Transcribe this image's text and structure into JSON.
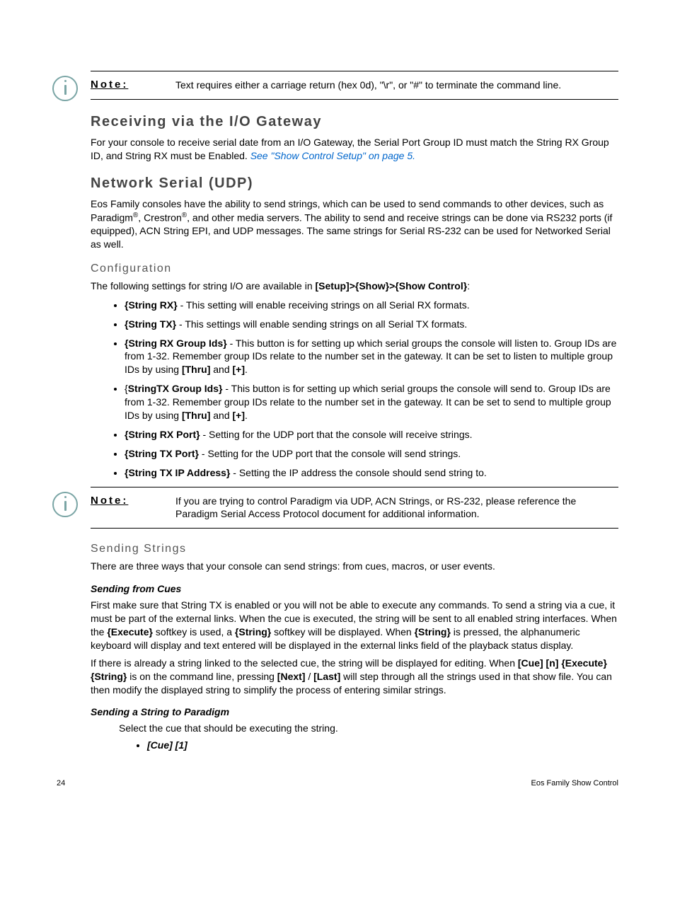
{
  "note1": {
    "label": "Note:",
    "text": "Text requires either a carriage return (hex 0d), \"\\r\", or \"#\" to terminate the command line."
  },
  "section_receiving": {
    "title": "Receiving via the I/O Gateway",
    "body": "For your console to receive serial date from an I/O Gateway, the Serial Port Group ID must match the String RX Group ID, and String RX must be Enabled.",
    "link": "See \"Show Control Setup\" on page 5."
  },
  "section_network": {
    "title": "Network Serial (UDP)",
    "intro_a": "Eos Family consoles have the ability to send strings, which can be used to send commands to other devices, such as Paradigm",
    "intro_b": ", Crestron",
    "intro_c": ", and other media servers. The ability to send and receive strings can be done via RS232 ports (if equipped), ACN String EPI, and UDP messages. The same strings for Serial RS-232 can be used for Networked Serial as well."
  },
  "configuration": {
    "title": "Configuration",
    "intro_a": "The following settings for string I/O are available in ",
    "intro_b": "[Setup]>{Show}>{Show Control}",
    "intro_c": ":",
    "items": [
      {
        "key": "{String RX}",
        "post": " - This setting will enable receiving strings on all Serial RX formats."
      },
      {
        "key": "{String TX}",
        "post": " - This settings will enable sending strings on all Serial TX formats."
      },
      {
        "key": "{String RX Group Ids}",
        "post": " - This button is for setting up which serial groups the console will listen to. Group IDs are from 1-32. Remember group IDs relate to the number set in the gateway. It can be set to listen to multiple group IDs by using ",
        "tail_a": "[Thru]",
        "tail_b": " and ",
        "tail_c": "[+]",
        "tail_d": "."
      },
      {
        "key_pre": "{",
        "key_mid": "StringTX Group Ids}",
        "post": " - This button is for setting up which serial groups the console will send to. Group IDs are from 1-32. Remember group IDs relate to the number set in the gateway. It can be set to send to multiple group IDs by using ",
        "tail_a": "[Thru]",
        "tail_b": " and ",
        "tail_c": "[+]",
        "tail_d": "."
      },
      {
        "key": "{String RX Port}",
        "post": " - Setting for the UDP port that the console will receive strings."
      },
      {
        "key": "{String TX Port}",
        "post": " - Setting for the UDP port that the console will send strings."
      },
      {
        "key": "{String TX IP Address}",
        "post": " - Setting the IP address the console should send string to."
      }
    ]
  },
  "note2": {
    "label": "Note:",
    "text": "If you are trying to control Paradigm via UDP, ACN Strings, or RS-232, please reference the Paradigm Serial Access Protocol document for additional information."
  },
  "sending": {
    "title": "Sending Strings",
    "intro": "There are three ways that your console can send strings: from cues, macros, or user events.",
    "cues_title": "Sending from Cues",
    "cues_p1_a": "First make sure that String TX is enabled or you will not be able to execute any commands. To send a string via a cue, it must be part of the external links. When the cue is executed, the string will be sent to all enabled string interfaces. When the ",
    "cues_p1_b": "{Execute}",
    "cues_p1_c": " softkey is used, a ",
    "cues_p1_d": "{String}",
    "cues_p1_e": " softkey will be displayed. When ",
    "cues_p1_f": "{String}",
    "cues_p1_g": " is pressed, the alphanumeric keyboard will display and text entered will be displayed in the external links field of the playback status display.",
    "cues_p2_a": "If there is already a string linked to the selected cue, the string will be displayed for editing. When ",
    "cues_p2_b": "[Cue] [n] {Execute} {String}",
    "cues_p2_c": " is on the command line, pressing ",
    "cues_p2_d": "[Next]",
    "cues_p2_e": " / ",
    "cues_p2_f": "[Last]",
    "cues_p2_g": " will step through all the strings used in that show file. You can then modify the displayed string to simplify the process of entering similar strings.",
    "paradigm_title": "Sending a String to Paradigm",
    "paradigm_intro": "Select the cue that should be executing the string.",
    "paradigm_item": "[Cue] [1]"
  },
  "footer": {
    "page": "24",
    "title": "Eos Family Show Control"
  },
  "colors": {
    "icon": "#7aa5a5",
    "link": "#0066cc"
  }
}
